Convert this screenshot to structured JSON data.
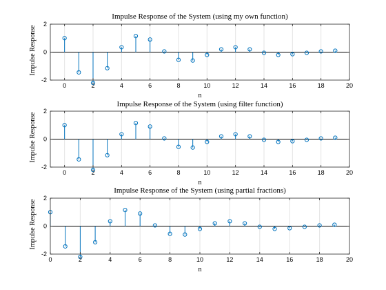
{
  "colors": {
    "stem": "#0072BD",
    "grid": "#e3e3e3",
    "axes": "#262626"
  },
  "chart_data": [
    {
      "type": "stem",
      "title": "Impulse Response of the System (using my own function)",
      "xlabel": "n",
      "ylabel": "Impulse Response",
      "xlim": [
        -1,
        20
      ],
      "ylim": [
        -2,
        2
      ],
      "xticks": [
        0,
        2,
        4,
        6,
        8,
        10,
        12,
        14,
        16,
        18,
        20
      ],
      "yticks": [
        -2,
        0,
        2
      ],
      "grid": true,
      "x": [
        0,
        1,
        2,
        3,
        4,
        5,
        6,
        7,
        8,
        9,
        10,
        11,
        12,
        13,
        14,
        15,
        16,
        17,
        18,
        19
      ],
      "values": [
        1.0,
        -1.45,
        -2.2,
        -1.15,
        0.35,
        1.15,
        0.9,
        0.05,
        -0.55,
        -0.6,
        -0.2,
        0.2,
        0.35,
        0.2,
        -0.05,
        -0.2,
        -0.15,
        -0.05,
        0.05,
        0.1
      ]
    },
    {
      "type": "stem",
      "title": "Impulse Response of the System (using filter function)",
      "xlabel": "n",
      "ylabel": "Impulse Response",
      "xlim": [
        -1,
        20
      ],
      "ylim": [
        -2,
        2
      ],
      "xticks": [
        0,
        2,
        4,
        6,
        8,
        10,
        12,
        14,
        16,
        18,
        20
      ],
      "yticks": [
        -2,
        0,
        2
      ],
      "grid": true,
      "x": [
        0,
        1,
        2,
        3,
        4,
        5,
        6,
        7,
        8,
        9,
        10,
        11,
        12,
        13,
        14,
        15,
        16,
        17,
        18,
        19
      ],
      "values": [
        1.0,
        -1.45,
        -2.2,
        -1.15,
        0.35,
        1.15,
        0.9,
        0.05,
        -0.55,
        -0.6,
        -0.2,
        0.2,
        0.35,
        0.2,
        -0.05,
        -0.2,
        -0.15,
        -0.05,
        0.05,
        0.1
      ]
    },
    {
      "type": "stem",
      "title": "Impulse Response of the System (using partial fractions)",
      "xlabel": "n",
      "ylabel": "Impulse Response",
      "xlim": [
        0,
        20
      ],
      "ylim": [
        -2,
        2
      ],
      "xticks": [
        0,
        2,
        4,
        6,
        8,
        10,
        12,
        14,
        16,
        18,
        20
      ],
      "yticks": [
        -2,
        0,
        2
      ],
      "grid": true,
      "x": [
        0,
        1,
        2,
        3,
        4,
        5,
        6,
        7,
        8,
        9,
        10,
        11,
        12,
        13,
        14,
        15,
        16,
        17,
        18,
        19
      ],
      "values": [
        1.0,
        -1.45,
        -2.2,
        -1.15,
        0.35,
        1.15,
        0.9,
        0.05,
        -0.55,
        -0.6,
        -0.2,
        0.2,
        0.35,
        0.2,
        -0.05,
        -0.2,
        -0.15,
        -0.05,
        0.05,
        0.1
      ]
    }
  ]
}
